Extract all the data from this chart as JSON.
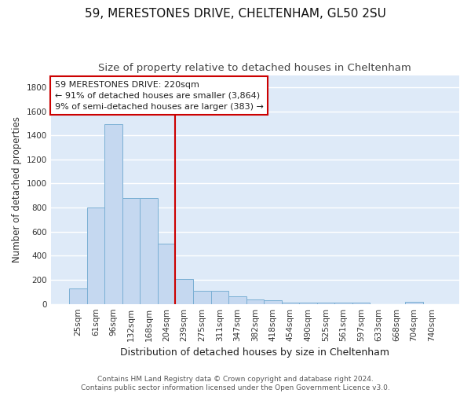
{
  "title1": "59, MERESTONES DRIVE, CHELTENHAM, GL50 2SU",
  "title2": "Size of property relative to detached houses in Cheltenham",
  "xlabel": "Distribution of detached houses by size in Cheltenham",
  "ylabel": "Number of detached properties",
  "categories": [
    "25sqm",
    "61sqm",
    "96sqm",
    "132sqm",
    "168sqm",
    "204sqm",
    "239sqm",
    "275sqm",
    "311sqm",
    "347sqm",
    "382sqm",
    "418sqm",
    "454sqm",
    "490sqm",
    "525sqm",
    "561sqm",
    "597sqm",
    "633sqm",
    "668sqm",
    "704sqm",
    "740sqm"
  ],
  "values": [
    130,
    800,
    1490,
    880,
    880,
    500,
    210,
    110,
    110,
    65,
    40,
    30,
    10,
    10,
    10,
    10,
    10,
    0,
    0,
    15,
    0
  ],
  "bar_color": "#c5d8f0",
  "bar_edge_color": "#7aafd4",
  "bg_color": "#deeaf8",
  "grid_color": "#ffffff",
  "vline_color": "#cc0000",
  "annotation_line1": "59 MERESTONES DRIVE: 220sqm",
  "annotation_line2": "← 91% of detached houses are smaller (3,864)",
  "annotation_line3": "9% of semi-detached houses are larger (383) →",
  "annotation_box_color": "#ffffff",
  "annotation_box_edge_color": "#cc0000",
  "footer_text": "Contains HM Land Registry data © Crown copyright and database right 2024.\nContains public sector information licensed under the Open Government Licence v3.0.",
  "ylim": [
    0,
    1900
  ],
  "yticks": [
    0,
    200,
    400,
    600,
    800,
    1000,
    1200,
    1400,
    1600,
    1800
  ],
  "title1_fontsize": 11,
  "title2_fontsize": 9.5,
  "xlabel_fontsize": 9,
  "ylabel_fontsize": 8.5,
  "tick_fontsize": 7.5,
  "annotation_fontsize": 8,
  "footer_fontsize": 6.5
}
